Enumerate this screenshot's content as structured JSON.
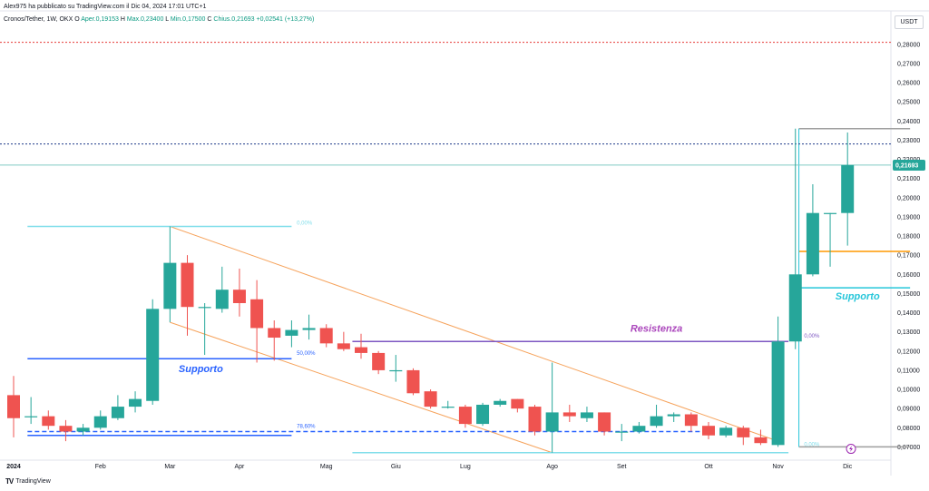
{
  "header": {
    "publisher": "Alex975 ha pubblicato su TradingView.com il Dic 04, 2024 17:01 UTC+1",
    "symbol": "Cronos/Tether, 1W, OKX",
    "o_label": "O",
    "o_value": "Aper.0,19153",
    "h_label": "H",
    "h_value": "Max.0,23400",
    "l_label": "L",
    "l_value": "Min.0,17500",
    "c_label": "C",
    "c_value": "Chius.0,21693",
    "change": "+0,02541 (+13,27%)"
  },
  "currency": "USDT",
  "brand": "TradingView",
  "colors": {
    "up": "#26a69a",
    "down": "#ef5350",
    "channel": "#f6a35c",
    "support": "#2962ff",
    "resistance": "#7e57c2",
    "price_tag": "#26a69a"
  },
  "chart_data": {
    "type": "candlestick",
    "title": "",
    "xlabel": "",
    "ylabel": "",
    "ylim": [
      0.065,
      0.287
    ],
    "y_ticks": [
      "0,07000",
      "0,08000",
      "0,09000",
      "0,10000",
      "0,11000",
      "0,12000",
      "0,13000",
      "0,14000",
      "0,15000",
      "0,16000",
      "0,17000",
      "0,18000",
      "0,19000",
      "0,20000",
      "0,21000",
      "0,22000",
      "0,23000",
      "0,24000",
      "0,25000",
      "0,26000",
      "0,27000",
      "0,28000"
    ],
    "x_ticks": [
      {
        "label": "2024",
        "week": 0
      },
      {
        "label": "Feb",
        "week": 5
      },
      {
        "label": "Mar",
        "week": 9
      },
      {
        "label": "Apr",
        "week": 13
      },
      {
        "label": "Mag",
        "week": 18
      },
      {
        "label": "Giu",
        "week": 22
      },
      {
        "label": "Lug",
        "week": 26
      },
      {
        "label": "Ago",
        "week": 31
      },
      {
        "label": "Set",
        "week": 35
      },
      {
        "label": "Ott",
        "week": 40
      },
      {
        "label": "Nov",
        "week": 44
      },
      {
        "label": "Dic",
        "week": 48
      }
    ],
    "candles": [
      {
        "o": 0.097,
        "h": 0.107,
        "l": 0.075,
        "c": 0.085
      },
      {
        "o": 0.086,
        "h": 0.096,
        "l": 0.082,
        "c": 0.086
      },
      {
        "o": 0.086,
        "h": 0.089,
        "l": 0.079,
        "c": 0.081
      },
      {
        "o": 0.081,
        "h": 0.084,
        "l": 0.073,
        "c": 0.078
      },
      {
        "o": 0.078,
        "h": 0.082,
        "l": 0.076,
        "c": 0.08
      },
      {
        "o": 0.08,
        "h": 0.089,
        "l": 0.079,
        "c": 0.086
      },
      {
        "o": 0.085,
        "h": 0.097,
        "l": 0.084,
        "c": 0.091
      },
      {
        "o": 0.091,
        "h": 0.099,
        "l": 0.088,
        "c": 0.095
      },
      {
        "o": 0.094,
        "h": 0.147,
        "l": 0.092,
        "c": 0.142
      },
      {
        "o": 0.142,
        "h": 0.185,
        "l": 0.135,
        "c": 0.166
      },
      {
        "o": 0.166,
        "h": 0.17,
        "l": 0.128,
        "c": 0.143
      },
      {
        "o": 0.143,
        "h": 0.145,
        "l": 0.118,
        "c": 0.143
      },
      {
        "o": 0.142,
        "h": 0.164,
        "l": 0.14,
        "c": 0.152
      },
      {
        "o": 0.152,
        "h": 0.163,
        "l": 0.138,
        "c": 0.145
      },
      {
        "o": 0.147,
        "h": 0.157,
        "l": 0.114,
        "c": 0.132
      },
      {
        "o": 0.132,
        "h": 0.136,
        "l": 0.115,
        "c": 0.127
      },
      {
        "o": 0.128,
        "h": 0.136,
        "l": 0.122,
        "c": 0.131
      },
      {
        "o": 0.131,
        "h": 0.139,
        "l": 0.126,
        "c": 0.132
      },
      {
        "o": 0.132,
        "h": 0.134,
        "l": 0.122,
        "c": 0.124
      },
      {
        "o": 0.124,
        "h": 0.13,
        "l": 0.12,
        "c": 0.121
      },
      {
        "o": 0.122,
        "h": 0.129,
        "l": 0.116,
        "c": 0.119
      },
      {
        "o": 0.119,
        "h": 0.12,
        "l": 0.108,
        "c": 0.11
      },
      {
        "o": 0.11,
        "h": 0.118,
        "l": 0.104,
        "c": 0.11
      },
      {
        "o": 0.11,
        "h": 0.111,
        "l": 0.097,
        "c": 0.098
      },
      {
        "o": 0.099,
        "h": 0.1,
        "l": 0.09,
        "c": 0.091
      },
      {
        "o": 0.091,
        "h": 0.094,
        "l": 0.09,
        "c": 0.091
      },
      {
        "o": 0.091,
        "h": 0.092,
        "l": 0.08,
        "c": 0.082
      },
      {
        "o": 0.082,
        "h": 0.093,
        "l": 0.081,
        "c": 0.092
      },
      {
        "o": 0.092,
        "h": 0.095,
        "l": 0.091,
        "c": 0.094
      },
      {
        "o": 0.095,
        "h": 0.095,
        "l": 0.088,
        "c": 0.09
      },
      {
        "o": 0.091,
        "h": 0.092,
        "l": 0.076,
        "c": 0.078
      },
      {
        "o": 0.078,
        "h": 0.114,
        "l": 0.067,
        "c": 0.088
      },
      {
        "o": 0.088,
        "h": 0.092,
        "l": 0.083,
        "c": 0.086
      },
      {
        "o": 0.085,
        "h": 0.091,
        "l": 0.083,
        "c": 0.088
      },
      {
        "o": 0.088,
        "h": 0.088,
        "l": 0.076,
        "c": 0.078
      },
      {
        "o": 0.078,
        "h": 0.082,
        "l": 0.073,
        "c": 0.078
      },
      {
        "o": 0.078,
        "h": 0.083,
        "l": 0.077,
        "c": 0.081
      },
      {
        "o": 0.081,
        "h": 0.092,
        "l": 0.08,
        "c": 0.086
      },
      {
        "o": 0.086,
        "h": 0.088,
        "l": 0.083,
        "c": 0.087
      },
      {
        "o": 0.087,
        "h": 0.088,
        "l": 0.078,
        "c": 0.081
      },
      {
        "o": 0.081,
        "h": 0.083,
        "l": 0.074,
        "c": 0.076
      },
      {
        "o": 0.076,
        "h": 0.081,
        "l": 0.075,
        "c": 0.08
      },
      {
        "o": 0.08,
        "h": 0.081,
        "l": 0.071,
        "c": 0.075
      },
      {
        "o": 0.075,
        "h": 0.079,
        "l": 0.071,
        "c": 0.072
      },
      {
        "o": 0.071,
        "h": 0.138,
        "l": 0.07,
        "c": 0.125
      },
      {
        "o": 0.125,
        "h": 0.236,
        "l": 0.121,
        "c": 0.16
      },
      {
        "o": 0.16,
        "h": 0.207,
        "l": 0.159,
        "c": 0.192
      },
      {
        "o": 0.192,
        "h": 0.192,
        "l": 0.164,
        "c": 0.192
      },
      {
        "o": 0.192,
        "h": 0.234,
        "l": 0.175,
        "c": 0.217
      }
    ],
    "lines": [
      {
        "name": "channel-upper",
        "kind": "trend",
        "x1": 9,
        "y1": 0.185,
        "x2": 44,
        "y2": 0.073,
        "color": "#f6a35c"
      },
      {
        "name": "channel-lower",
        "kind": "trend",
        "x1": 9,
        "y1": 0.135,
        "x2": 31,
        "y2": 0.067,
        "color": "#f6a35c"
      },
      {
        "name": "support-blue",
        "kind": "hline",
        "x1": 0.8,
        "x2": 16,
        "y": 0.116,
        "color": "#2962ff",
        "dash": false
      },
      {
        "name": "fib-786-dashed",
        "kind": "hline",
        "x1": 0.8,
        "x2": 40,
        "y": 0.078,
        "color": "#2962ff",
        "dash": true
      },
      {
        "name": "fib-786-solid",
        "kind": "hline",
        "x1": 0.8,
        "x2": 16,
        "y": 0.076,
        "color": "#2962ff",
        "dash": false
      },
      {
        "name": "fib-0-top",
        "kind": "hline",
        "x1": 0.8,
        "x2": 16,
        "y": 0.185,
        "color": "#80deea",
        "dash": false
      },
      {
        "name": "resistance-purple",
        "kind": "hline",
        "x1": 19.5,
        "x2": 44.6,
        "y": 0.125,
        "color": "#7e57c2",
        "dash": false
      },
      {
        "name": "fib-0-bottom",
        "kind": "hline",
        "x1": 19.5,
        "x2": 44.6,
        "y": 0.067,
        "color": "#80deea",
        "dash": false
      },
      {
        "name": "support-cyan",
        "kind": "hline",
        "x1": 45.2,
        "x2": 51.6,
        "y": 0.153,
        "color": "#26c6da",
        "dash": false
      },
      {
        "name": "level-orange",
        "kind": "hline",
        "x1": 45.2,
        "x2": 51.6,
        "y": 0.172,
        "color": "#ff9800",
        "dash": false
      },
      {
        "name": "high-gray",
        "kind": "hline",
        "x1": 45.2,
        "x2": 51.6,
        "y": 0.236,
        "color": "#9e9e9e",
        "dash": false
      },
      {
        "name": "low-gray",
        "kind": "hline",
        "x1": 45.2,
        "x2": 51.6,
        "y": 0.07,
        "color": "#9e9e9e",
        "dash": false
      },
      {
        "name": "range-vertical",
        "kind": "vline",
        "x": 45.2,
        "y1": 0.07,
        "y2": 0.236,
        "color": "#26c6da"
      },
      {
        "name": "alert-red-dotted",
        "kind": "full",
        "y": 0.281,
        "color": "#e53935",
        "dash": true
      },
      {
        "name": "alert-blue-dotted",
        "kind": "full",
        "y": 0.228,
        "color": "#1e3a8a",
        "dash": true
      },
      {
        "name": "last-price-line",
        "kind": "full",
        "y": 0.217,
        "color": "#80cbc4",
        "dash": false
      }
    ],
    "annotations": [
      {
        "name": "supporto-left",
        "text": "Supporto",
        "x": 9.5,
        "y": 0.109,
        "color": "#2962ff",
        "size": 11,
        "bold": true,
        "italic": true,
        "anchor": "start"
      },
      {
        "name": "resistenza",
        "text": "Resistenza",
        "x": 35.5,
        "y": 0.13,
        "color": "#ab47bc",
        "size": 11,
        "bold": true,
        "italic": true,
        "anchor": "start"
      },
      {
        "name": "supporto-right",
        "text": "Supporto",
        "x": 47.3,
        "y": 0.147,
        "color": "#26c6da",
        "size": 11,
        "bold": true,
        "italic": true,
        "anchor": "start"
      },
      {
        "name": "fib-50",
        "text": "50,00%",
        "x": 16.3,
        "y": 0.118,
        "color": "#2962ff",
        "size": 6,
        "bold": false,
        "italic": false,
        "anchor": "start"
      },
      {
        "name": "fib-786",
        "text": "78,60%",
        "x": 16.3,
        "y": 0.08,
        "color": "#2962ff",
        "size": 6,
        "bold": false,
        "italic": false,
        "anchor": "start"
      },
      {
        "name": "fib-0-top",
        "text": "0,00%",
        "x": 16.3,
        "y": 0.186,
        "color": "#80deea",
        "size": 6,
        "bold": false,
        "italic": false,
        "anchor": "start"
      },
      {
        "name": "fib-0-mid",
        "text": "0,00%",
        "x": 45.5,
        "y": 0.127,
        "color": "#7e57c2",
        "size": 6,
        "bold": false,
        "italic": false,
        "anchor": "start"
      },
      {
        "name": "fib-0-low",
        "text": "0,00%",
        "x": 45.5,
        "y": 0.0705,
        "color": "#80deea",
        "size": 6,
        "bold": false,
        "italic": false,
        "anchor": "start"
      }
    ],
    "last_price": {
      "label": "0,21693",
      "value": 0.21693
    }
  }
}
